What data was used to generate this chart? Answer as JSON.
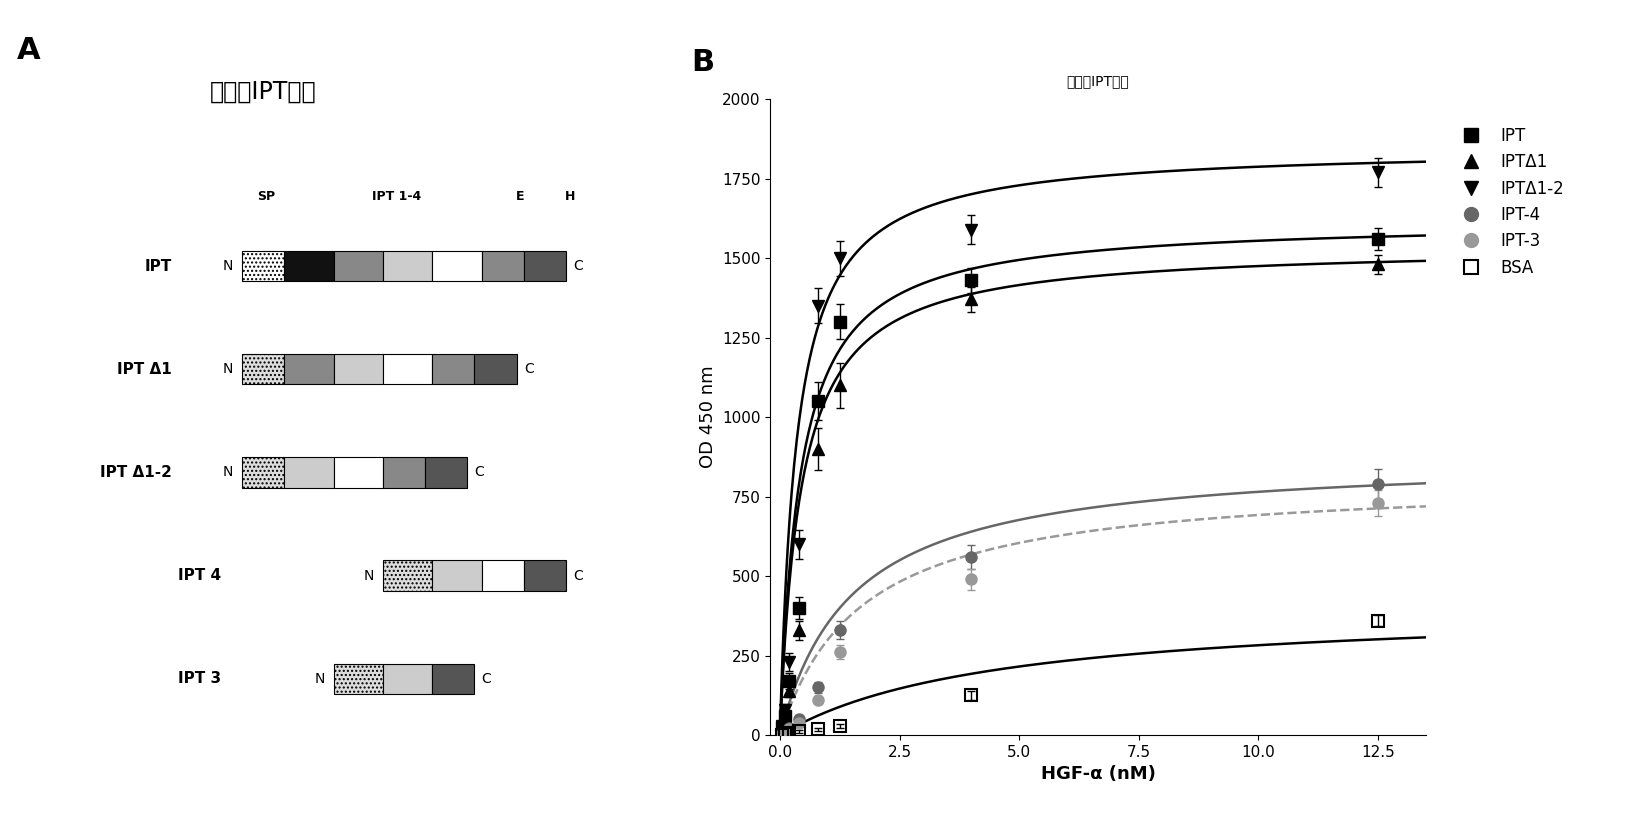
{
  "title_A": "缺失的IPT形式",
  "title_B": "缺失的IPT结合",
  "panel_A_label": "A",
  "panel_B_label": "B",
  "xlabel": "HGF-α (nM)",
  "ylabel": "OD 450 nm",
  "ylim": [
    0,
    2000
  ],
  "yticks": [
    0,
    250,
    500,
    750,
    1000,
    1250,
    1500,
    1750,
    2000
  ],
  "xticks": [
    0.0,
    2.5,
    5.0,
    7.5,
    10.0,
    12.5
  ],
  "xlim": [
    -0.2,
    13.5
  ],
  "header_labels": [
    "SP",
    "IPT 1-4",
    "E",
    "H"
  ],
  "row_labels": [
    "IPT",
    "IPT Δ1",
    "IPT Δ1-2",
    "IPT 4",
    "IPT 3"
  ],
  "series": [
    {
      "name": "IPT",
      "marker": "s",
      "fillstyle": "full",
      "color": "#000000",
      "line_color": "#000000",
      "line_style": "-",
      "x": [
        0.05,
        0.1,
        0.2,
        0.4,
        0.8,
        1.25,
        4.0,
        12.5
      ],
      "y": [
        25,
        60,
        170,
        400,
        1050,
        1300,
        1430,
        1560
      ],
      "yerr": [
        10,
        15,
        25,
        35,
        60,
        55,
        40,
        35
      ],
      "Bmax": 1620,
      "Kd": 0.42
    },
    {
      "name": "IPTΔ1",
      "marker": "^",
      "fillstyle": "full",
      "color": "#000000",
      "line_color": "#000000",
      "line_style": "-",
      "x": [
        0.05,
        0.1,
        0.2,
        0.4,
        0.8,
        1.25,
        4.0,
        12.5
      ],
      "y": [
        20,
        50,
        140,
        330,
        900,
        1100,
        1370,
        1480
      ],
      "yerr": [
        8,
        12,
        20,
        30,
        65,
        70,
        38,
        30
      ],
      "Bmax": 1540,
      "Kd": 0.44
    },
    {
      "name": "IPTΔ1-2",
      "marker": "v",
      "fillstyle": "full",
      "color": "#000000",
      "line_color": "#000000",
      "line_style": "-",
      "x": [
        0.05,
        0.1,
        0.2,
        0.4,
        0.8,
        1.25,
        4.0,
        12.5
      ],
      "y": [
        30,
        80,
        230,
        600,
        1350,
        1500,
        1590,
        1770
      ],
      "yerr": [
        10,
        18,
        28,
        45,
        55,
        55,
        45,
        45
      ],
      "Bmax": 1850,
      "Kd": 0.35
    },
    {
      "name": "IPT-4",
      "marker": "o",
      "fillstyle": "full",
      "color": "#666666",
      "line_color": "#666666",
      "line_style": "-",
      "x": [
        0.05,
        0.1,
        0.2,
        0.4,
        0.8,
        1.25,
        4.0,
        12.5
      ],
      "y": [
        5,
        10,
        22,
        50,
        150,
        330,
        560,
        790
      ],
      "yerr": [
        3,
        4,
        7,
        12,
        18,
        28,
        38,
        48
      ],
      "Bmax": 880,
      "Kd": 1.5
    },
    {
      "name": "IPT-3",
      "marker": "o",
      "fillstyle": "full",
      "color": "#999999",
      "line_color": "#999999",
      "line_style": "--",
      "x": [
        0.05,
        0.1,
        0.2,
        0.4,
        0.8,
        1.25,
        4.0,
        12.5
      ],
      "y": [
        4,
        8,
        18,
        38,
        110,
        260,
        490,
        730
      ],
      "yerr": [
        2,
        3,
        5,
        8,
        12,
        22,
        33,
        42
      ],
      "Bmax": 810,
      "Kd": 1.7
    },
    {
      "name": "BSA",
      "marker": "s",
      "fillstyle": "none",
      "color": "#000000",
      "line_color": "#000000",
      "line_style": "-",
      "x": [
        0.05,
        0.1,
        0.2,
        0.4,
        0.8,
        1.25,
        4.0,
        12.5
      ],
      "y": [
        2,
        4,
        8,
        12,
        18,
        28,
        125,
        360
      ],
      "yerr": [
        1,
        2,
        3,
        4,
        4,
        6,
        14,
        18
      ],
      "Bmax": 410,
      "Kd": 4.5
    }
  ],
  "background_color": "#ffffff",
  "title_fontsize": 17,
  "label_fontsize": 13,
  "tick_fontsize": 11,
  "legend_fontsize": 12
}
